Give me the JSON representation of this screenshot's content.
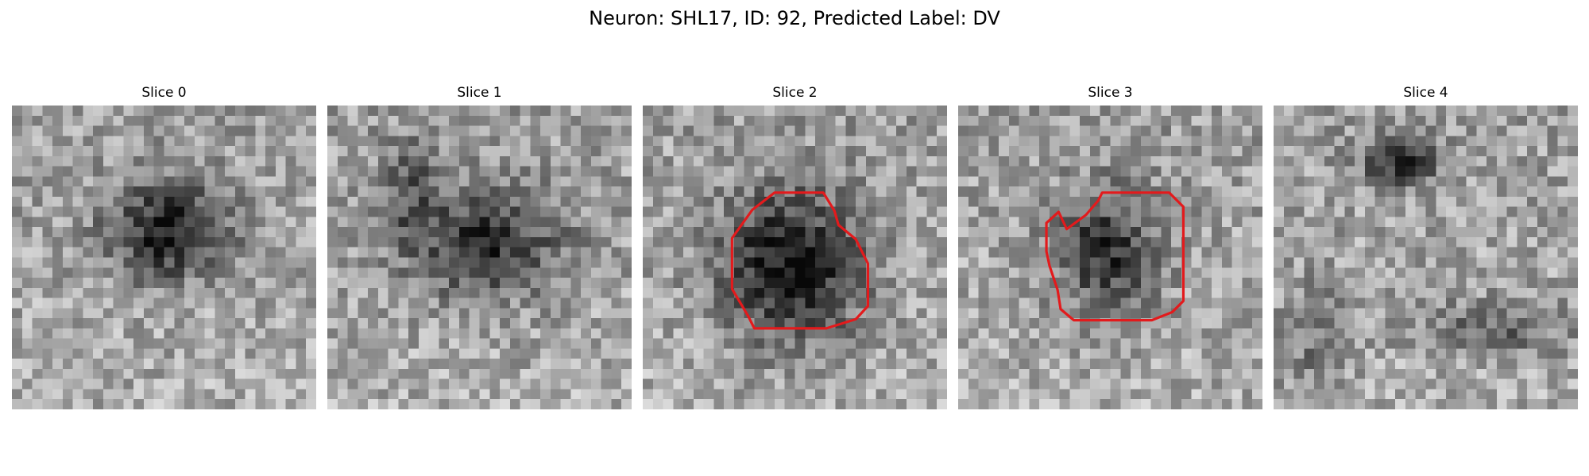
{
  "figure": {
    "title": "Neuron: SHL17, ID: 92, Predicted Label: DV"
  },
  "panels": [
    {
      "title": "Slice 0",
      "image": "grayscale-microscopy-slice",
      "has_roi_contour": false
    },
    {
      "title": "Slice 1",
      "image": "grayscale-microscopy-slice",
      "has_roi_contour": false
    },
    {
      "title": "Slice 2",
      "image": "grayscale-microscopy-slice",
      "has_roi_contour": true
    },
    {
      "title": "Slice 3",
      "image": "grayscale-microscopy-slice",
      "has_roi_contour": true
    },
    {
      "title": "Slice 4",
      "image": "grayscale-microscopy-slice",
      "has_roi_contour": false
    }
  ],
  "colors": {
    "roi_contour": "#e31a1c",
    "background": "#ffffff"
  }
}
